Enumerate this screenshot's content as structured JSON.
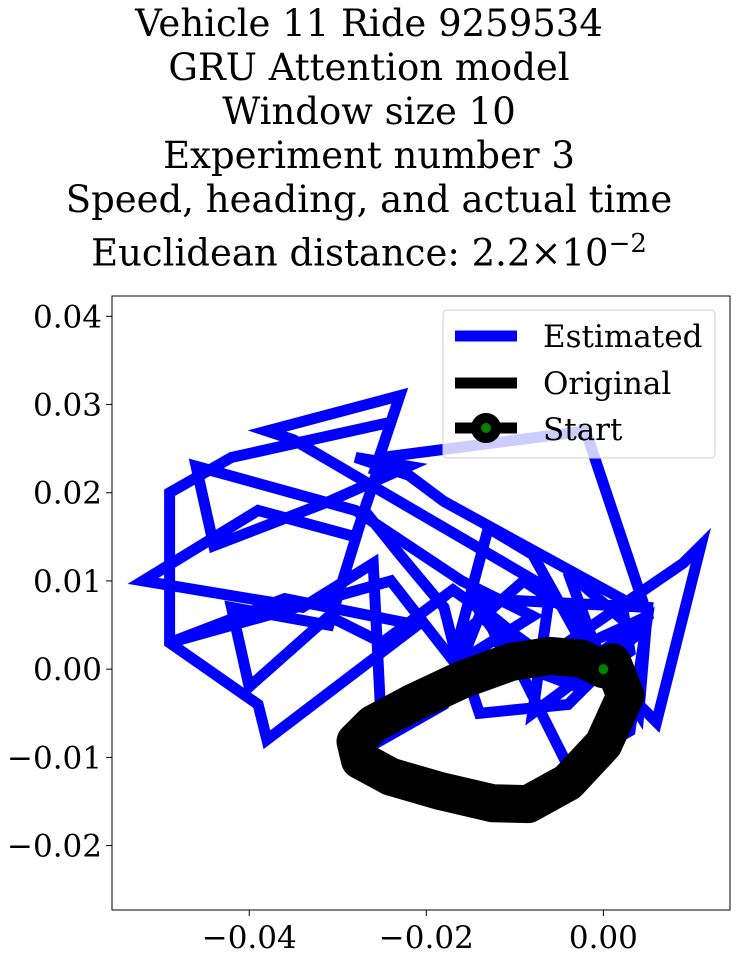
{
  "title_lines": [
    "Vehicle 11 Ride 9259534",
    "GRU Attention model",
    "Window size 10",
    "Experiment number 3",
    "Speed, heading, and actual time"
  ],
  "distance_line": {
    "prefix": "Euclidean distance: ",
    "mantissa": "2.2",
    "times": "×",
    "base": "10",
    "exponent": "−2"
  },
  "chart_data": {
    "type": "line",
    "xlim": [
      -0.0555,
      0.0143
    ],
    "ylim": [
      -0.0273,
      0.0423
    ],
    "x_ticks": [
      -0.04,
      -0.02,
      0.0
    ],
    "x_tick_labels": [
      "−0.04",
      "−0.02",
      "0.00"
    ],
    "y_ticks": [
      -0.02,
      -0.01,
      0.0,
      0.01,
      0.02,
      0.03,
      0.04
    ],
    "y_tick_labels": [
      "−0.02",
      "−0.01",
      "0.00",
      "0.01",
      "0.02",
      "0.03",
      "0.04"
    ],
    "grid": false,
    "legend_position": "upper right",
    "legend": [
      "Estimated",
      "Original",
      "Start"
    ],
    "colors": {
      "estimated": "#0000ff",
      "original": "#000000",
      "start_marker": "#008000",
      "start_edge": "#000000"
    },
    "series": [
      {
        "name": "Estimated",
        "x": [
          0.0,
          -0.004,
          0.004,
          -0.008,
          -0.006,
          -0.035,
          -0.038,
          -0.023,
          -0.026,
          -0.024,
          -0.042,
          -0.049,
          -0.049,
          -0.039,
          -0.038,
          -0.021,
          -0.036,
          -0.049,
          -0.024,
          -0.017,
          -0.013,
          -0.008,
          -0.003,
          0.003,
          0.006,
          0.011,
          0.009,
          -0.007,
          -0.014,
          -0.018,
          -0.025,
          -0.026,
          -0.034,
          -0.052,
          -0.039,
          -0.028,
          -0.025,
          -0.002,
          0.005,
          -0.004,
          -0.015,
          -0.01,
          -0.004,
          0.003,
          0.005,
          -0.006,
          -0.017,
          -0.025,
          -0.031,
          -0.04,
          -0.042,
          -0.031,
          -0.027,
          -0.023,
          -0.018,
          -0.017,
          -0.009,
          -0.003,
          0.004,
          0.005,
          -0.014,
          -0.011,
          -0.003,
          0.003,
          0.002,
          -0.018,
          -0.022,
          -0.028,
          -0.022,
          -0.031,
          -0.044,
          -0.046,
          -0.028,
          -0.016,
          -0.008,
          -0.016,
          -0.014,
          -0.004,
          0.0
        ],
        "y": [
          0.0,
          0.011,
          0.004,
          -0.005,
          0.009,
          0.026,
          0.027,
          0.031,
          0.022,
          0.028,
          0.024,
          0.02,
          0.003,
          -0.004,
          -0.008,
          0.005,
          0.008,
          0.003,
          0.01,
          0.001,
          0.016,
          0.013,
          0.004,
          -0.003,
          -0.006,
          0.014,
          0.012,
          0.001,
          0.006,
          -0.004,
          -0.008,
          0.012,
          0.007,
          0.01,
          0.018,
          0.015,
          0.024,
          0.027,
          0.006,
          -0.001,
          0.008,
          0.001,
          -0.011,
          -0.007,
          0.006,
          0.001,
          0.009,
          0.003,
          0.006,
          -0.002,
          0.007,
          0.005,
          0.018,
          0.013,
          0.007,
          0.003,
          0.01,
          0.006,
          -0.005,
          0.007,
          0.008,
          0.001,
          -0.002,
          0.002,
          0.008,
          0.019,
          0.022,
          0.024,
          0.023,
          0.019,
          0.014,
          0.023,
          0.018,
          0.01,
          0.006,
          0.001,
          -0.005,
          -0.004,
          0.0
        ]
      },
      {
        "name": "Original",
        "x": [
          0.0,
          -0.0025,
          -0.006,
          -0.0105,
          -0.016,
          -0.0215,
          -0.026,
          -0.028,
          -0.0275,
          -0.024,
          -0.0185,
          -0.0125,
          -0.0085,
          -0.004,
          0.0,
          0.0025,
          0.001,
          0.0
        ],
        "y": [
          0.0,
          0.0012,
          0.0015,
          0.0008,
          -0.0012,
          -0.0038,
          -0.0062,
          -0.0082,
          -0.0103,
          -0.0122,
          -0.0138,
          -0.0152,
          -0.0153,
          -0.0128,
          -0.0085,
          -0.003,
          0.0008,
          0.0
        ]
      }
    ],
    "start_point": {
      "x": 0.0,
      "y": 0.0
    }
  }
}
